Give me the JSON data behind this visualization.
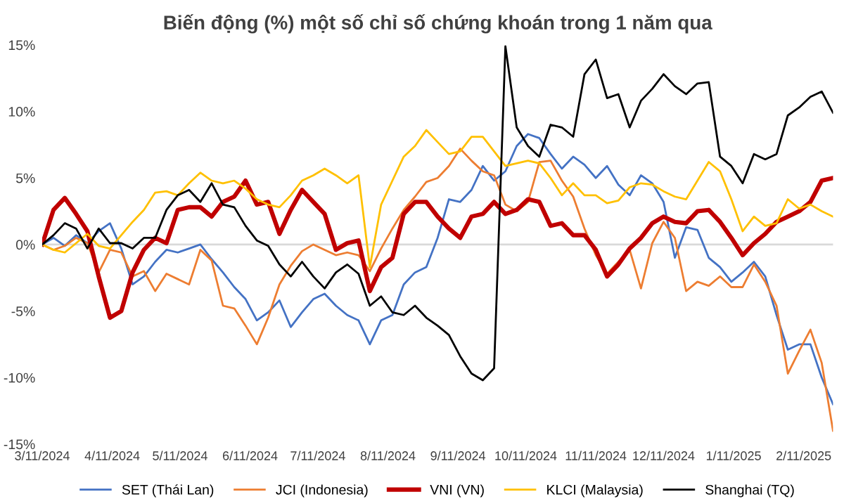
{
  "chart_data": {
    "type": "line",
    "title": "Biến động (%) một số chỉ số chứng khoán trong 1 năm qua",
    "x": [
      "2024-03-11",
      "2024-03-16",
      "2024-03-21",
      "2024-03-26",
      "2024-03-31",
      "2024-04-05",
      "2024-04-10",
      "2024-04-15",
      "2024-04-20",
      "2024-04-25",
      "2024-04-30",
      "2024-05-05",
      "2024-05-10",
      "2024-05-15",
      "2024-05-20",
      "2024-05-25",
      "2024-05-30",
      "2024-06-04",
      "2024-06-09",
      "2024-06-14",
      "2024-06-19",
      "2024-06-24",
      "2024-06-29",
      "2024-07-04",
      "2024-07-09",
      "2024-07-14",
      "2024-07-19",
      "2024-07-24",
      "2024-07-29",
      "2024-08-03",
      "2024-08-08",
      "2024-08-13",
      "2024-08-18",
      "2024-08-23",
      "2024-08-28",
      "2024-09-02",
      "2024-09-07",
      "2024-09-12",
      "2024-09-17",
      "2024-09-22",
      "2024-09-27",
      "2024-10-02",
      "2024-10-07",
      "2024-10-12",
      "2024-10-17",
      "2024-10-22",
      "2024-10-27",
      "2024-11-01",
      "2024-11-06",
      "2024-11-11",
      "2024-11-16",
      "2024-11-21",
      "2024-11-26",
      "2024-12-01",
      "2024-12-06",
      "2024-12-11",
      "2024-12-16",
      "2024-12-21",
      "2024-12-26",
      "2024-12-31",
      "2025-01-05",
      "2025-01-10",
      "2025-01-15",
      "2025-01-20",
      "2025-01-25",
      "2025-01-30",
      "2025-02-04",
      "2025-02-09",
      "2025-02-14",
      "2025-02-19",
      "2025-02-24"
    ],
    "series": [
      {
        "name": "SET (Thái Lan)",
        "color": "#4472c4",
        "values": [
          0,
          0.5,
          -0.1,
          0.7,
          0.1,
          1.0,
          1.6,
          -0.3,
          -3.0,
          -2.4,
          -1.3,
          -0.4,
          -0.6,
          -0.3,
          0.0,
          -1.1,
          -2.1,
          -3.2,
          -4.1,
          -5.7,
          -5.1,
          -4.2,
          -6.2,
          -5.1,
          -4.1,
          -3.7,
          -4.6,
          -5.3,
          -5.7,
          -7.5,
          -5.7,
          -5.3,
          -3.0,
          -2.1,
          -1.7,
          0.5,
          3.4,
          3.2,
          4.1,
          5.9,
          4.8,
          5.5,
          7.4,
          8.3,
          8.0,
          6.8,
          5.7,
          6.6,
          6.0,
          5.0,
          5.9,
          4.5,
          3.7,
          5.2,
          4.6,
          3.2,
          -1.0,
          1.3,
          1.1,
          -1.0,
          -1.7,
          -2.8,
          -2.1,
          -1.3,
          -2.4,
          -5.3,
          -7.9,
          -7.5,
          -7.5,
          -10.0,
          -12.0
        ]
      },
      {
        "name": "JCI (Indonesia)",
        "color": "#ed7d31",
        "values": [
          0,
          -0.4,
          -0.1,
          0.5,
          0.1,
          -2.1,
          -0.4,
          -0.6,
          -2.4,
          -2.0,
          -3.5,
          -2.2,
          -2.6,
          -3.0,
          -0.4,
          -1.2,
          -4.6,
          -4.8,
          -6.1,
          -7.5,
          -5.5,
          -3.0,
          -1.6,
          -0.5,
          0.0,
          -0.4,
          -0.8,
          -0.6,
          -0.8,
          -2.0,
          -0.3,
          1.2,
          2.6,
          3.6,
          4.7,
          5.0,
          5.9,
          7.2,
          6.3,
          5.5,
          5.2,
          3.0,
          2.5,
          3.2,
          6.2,
          6.3,
          4.8,
          3.6,
          1.2,
          -0.8,
          -2.2,
          -1.3,
          -0.4,
          -3.3,
          0.1,
          1.7,
          0.5,
          -3.5,
          -2.8,
          -3.1,
          -2.4,
          -3.2,
          -3.2,
          -1.5,
          -2.8,
          -4.6,
          -9.7,
          -8.0,
          -6.4,
          -8.9,
          -14.0
        ]
      },
      {
        "name": "VNI (VN)",
        "color": "#c00000",
        "values": [
          0,
          2.6,
          3.5,
          2.3,
          1.0,
          -2.4,
          -5.5,
          -5.0,
          -2.1,
          -0.4,
          0.5,
          0.1,
          2.6,
          2.8,
          2.8,
          2.1,
          3.2,
          3.6,
          4.8,
          3.0,
          3.2,
          0.8,
          2.6,
          4.1,
          3.2,
          2.3,
          -0.4,
          0.1,
          0.3,
          -3.5,
          -1.7,
          -1.0,
          2.3,
          3.2,
          3.2,
          2.1,
          1.2,
          0.5,
          2.1,
          2.3,
          3.2,
          2.3,
          2.6,
          3.4,
          3.2,
          1.4,
          1.6,
          0.7,
          0.7,
          -0.4,
          -2.4,
          -1.5,
          -0.3,
          0.5,
          1.6,
          2.1,
          1.7,
          1.6,
          2.5,
          2.6,
          1.7,
          0.5,
          -0.8,
          0.1,
          0.8,
          1.7,
          2.1,
          2.5,
          3.2,
          4.8,
          5.0
        ]
      },
      {
        "name": "KLCI (Malaysia)",
        "color": "#ffc000",
        "values": [
          0,
          -0.4,
          -0.6,
          0.1,
          0.8,
          -0.1,
          -0.3,
          0.7,
          1.7,
          2.6,
          3.9,
          4.0,
          3.7,
          4.6,
          5.4,
          4.8,
          4.6,
          4.8,
          4.2,
          3.4,
          3.0,
          2.8,
          3.7,
          4.8,
          5.2,
          5.7,
          5.2,
          4.6,
          5.2,
          -1.7,
          3.0,
          4.8,
          6.6,
          7.4,
          8.6,
          7.7,
          6.8,
          7.0,
          8.1,
          8.1,
          7.0,
          5.9,
          6.1,
          6.3,
          6.1,
          5.0,
          3.7,
          4.6,
          3.7,
          3.7,
          3.1,
          3.3,
          4.3,
          4.6,
          4.5,
          4.0,
          3.6,
          3.4,
          4.8,
          6.2,
          5.5,
          3.4,
          1.0,
          2.1,
          1.4,
          1.6,
          3.4,
          2.7,
          3.0,
          2.5,
          2.1
        ]
      },
      {
        "name": "Shanghai (TQ)",
        "color": "#000000",
        "values": [
          0,
          0.7,
          1.6,
          1.2,
          -0.3,
          1.2,
          0.1,
          0.1,
          -0.3,
          0.5,
          0.5,
          2.6,
          3.7,
          4.1,
          3.2,
          4.6,
          3.0,
          2.8,
          1.4,
          0.3,
          -0.1,
          -1.5,
          -2.4,
          -1.3,
          -2.4,
          -3.3,
          -2.1,
          -1.5,
          -2.2,
          -4.6,
          -3.9,
          -5.1,
          -5.3,
          -4.6,
          -5.5,
          -6.1,
          -6.8,
          -8.4,
          -9.7,
          -10.2,
          -9.3,
          14.9,
          8.8,
          7.4,
          6.6,
          9.0,
          8.8,
          8.1,
          12.8,
          13.9,
          11.0,
          11.3,
          8.8,
          10.8,
          11.7,
          12.8,
          11.9,
          11.3,
          12.1,
          12.2,
          6.6,
          5.9,
          4.6,
          6.8,
          6.4,
          6.8,
          9.7,
          10.3,
          11.1,
          11.5,
          9.9
        ]
      }
    ],
    "xlim": [
      "2024-03-11",
      "2025-02-24"
    ],
    "xticks": [
      {
        "value": "2024-03-11",
        "label": "3/11/2024"
      },
      {
        "value": "2024-04-11",
        "label": "4/11/2024"
      },
      {
        "value": "2024-05-11",
        "label": "5/11/2024"
      },
      {
        "value": "2024-06-11",
        "label": "6/11/2024"
      },
      {
        "value": "2024-07-11",
        "label": "7/11/2024"
      },
      {
        "value": "2024-08-11",
        "label": "8/11/2024"
      },
      {
        "value": "2024-09-11",
        "label": "9/11/2024"
      },
      {
        "value": "2024-10-11",
        "label": "10/11/2024"
      },
      {
        "value": "2024-11-11",
        "label": "11/11/2024"
      },
      {
        "value": "2024-12-11",
        "label": "12/11/2024"
      },
      {
        "value": "2025-01-11",
        "label": "1/11/2025"
      },
      {
        "value": "2025-02-11",
        "label": "2/11/2025"
      }
    ],
    "ylim": [
      -15,
      15
    ],
    "yticks": [
      {
        "value": -15,
        "label": "-15%"
      },
      {
        "value": -10,
        "label": "-10%"
      },
      {
        "value": -5,
        "label": "-5%"
      },
      {
        "value": 0,
        "label": "0%"
      },
      {
        "value": 5,
        "label": "5%"
      },
      {
        "value": 10,
        "label": "10%"
      },
      {
        "value": 15,
        "label": "15%"
      }
    ],
    "ref_lines": [
      {
        "axis": "y",
        "value": 0,
        "label": null,
        "color": "#d9d9d9"
      }
    ],
    "grid": false,
    "legend": "bottom",
    "marker": "none",
    "line_style": "solid"
  }
}
